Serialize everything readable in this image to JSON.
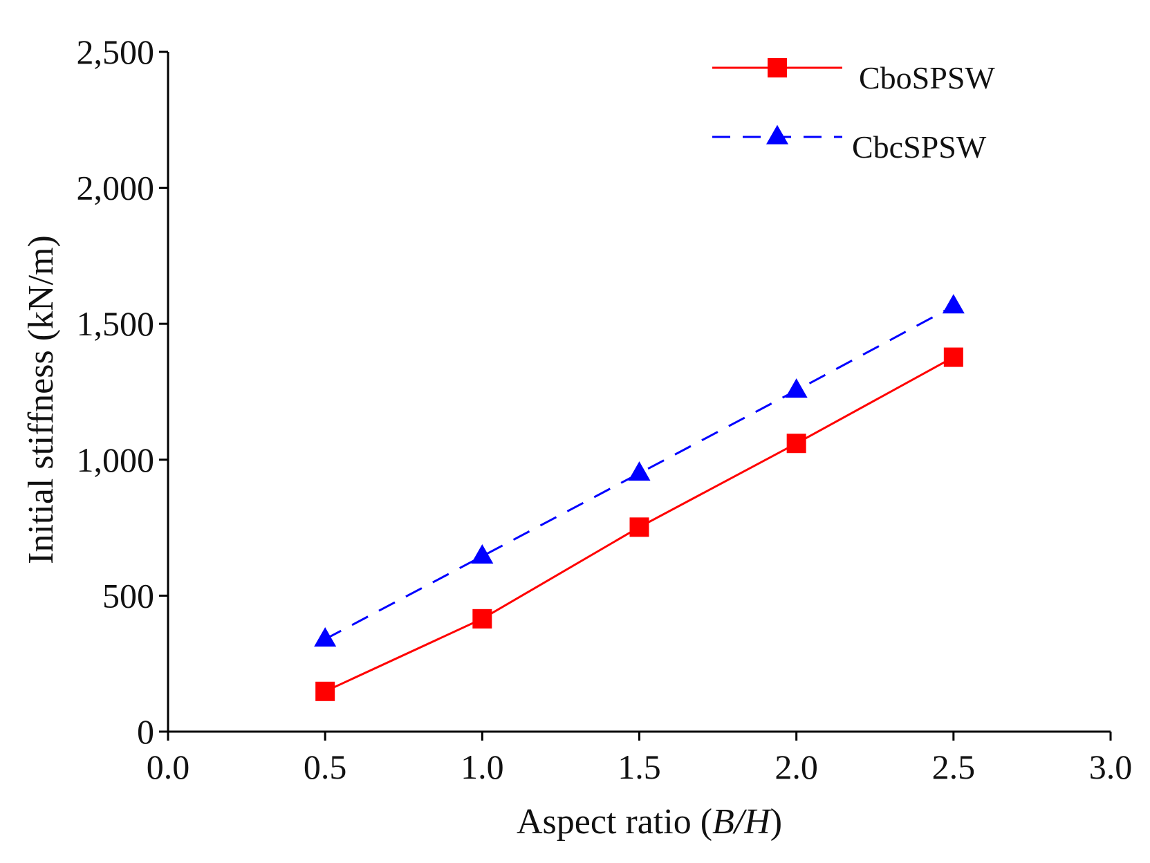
{
  "chart_data": {
    "type": "line",
    "title": "",
    "xlabel_prefix": "Aspect ratio (",
    "xlabel_italic": "B/H",
    "xlabel_suffix": ")",
    "ylabel": "Initial stiffness (kN/m)",
    "xlim": [
      0,
      3
    ],
    "ylim": [
      0,
      2500
    ],
    "xticks": [
      "0.0",
      "0.5",
      "1.0",
      "1.5",
      "2.0",
      "2.5",
      "3.0"
    ],
    "yticks": [
      "0",
      "500",
      "1,000",
      "1,500",
      "2,000",
      "2,500"
    ],
    "grid": false,
    "legend_position": "top-right",
    "x": [
      0.5,
      1.0,
      1.5,
      2.0,
      2.5
    ],
    "series": [
      {
        "name": "CboSPSW",
        "values": [
          148,
          415,
          752,
          1060,
          1377
        ],
        "color": "#ff0000",
        "marker": "square",
        "line_style": "solid"
      },
      {
        "name": "CbcSPSW",
        "values": [
          340,
          645,
          950,
          1255,
          1565
        ],
        "color": "#0000ff",
        "marker": "triangle",
        "line_style": "dashed"
      }
    ]
  }
}
